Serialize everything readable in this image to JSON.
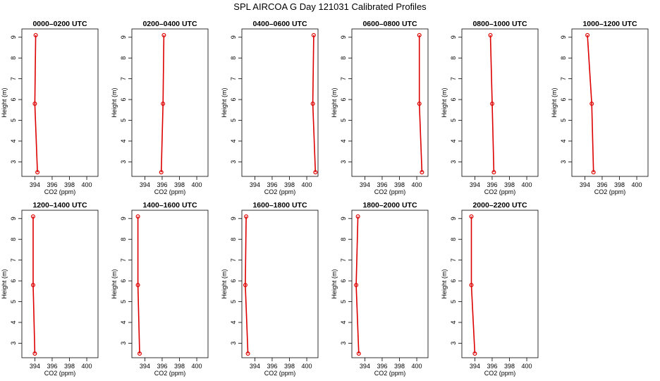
{
  "figure": {
    "title": "SPL AIRCOA G  Day 121031  Calibrated Profiles"
  },
  "chart_data": [
    {
      "type": "line",
      "title": "0000–0200 UTC",
      "xlabel": "CO2 (ppm)",
      "ylabel": "Height (m)",
      "xlim": [
        392.5,
        401.3
      ],
      "ylim": [
        2.3,
        9.4
      ],
      "xticks": [
        394,
        396,
        398,
        400
      ],
      "yticks": [
        3,
        4,
        5,
        6,
        7,
        8,
        9
      ],
      "grid": false,
      "series": [
        {
          "x": [
            394.1,
            394.0,
            394.3
          ],
          "y": [
            9.1,
            5.8,
            2.5
          ],
          "color": "#dd0000"
        }
      ]
    },
    {
      "type": "line",
      "title": "0200–0400 UTC",
      "xlabel": "CO2 (ppm)",
      "ylabel": "Height (m)",
      "xlim": [
        392.5,
        401.3
      ],
      "ylim": [
        2.3,
        9.4
      ],
      "xticks": [
        394,
        396,
        398,
        400
      ],
      "yticks": [
        3,
        4,
        5,
        6,
        7,
        8,
        9
      ],
      "grid": false,
      "series": [
        {
          "x": [
            396.2,
            396.1,
            395.9
          ],
          "y": [
            9.1,
            5.8,
            2.5
          ],
          "color": "#dd0000"
        }
      ]
    },
    {
      "type": "line",
      "title": "0400–0600 UTC",
      "xlabel": "CO2 (ppm)",
      "ylabel": "Height (m)",
      "xlim": [
        392.5,
        401.3
      ],
      "ylim": [
        2.3,
        9.4
      ],
      "xticks": [
        394,
        396,
        398,
        400
      ],
      "yticks": [
        3,
        4,
        5,
        6,
        7,
        8,
        9
      ],
      "grid": false,
      "series": [
        {
          "x": [
            400.8,
            400.7,
            401.0
          ],
          "y": [
            9.1,
            5.8,
            2.5
          ],
          "color": "#dd0000"
        }
      ]
    },
    {
      "type": "line",
      "title": "0600–0800 UTC",
      "xlabel": "CO2 (ppm)",
      "ylabel": "Height (m)",
      "xlim": [
        392.5,
        401.3
      ],
      "ylim": [
        2.3,
        9.4
      ],
      "xticks": [
        394,
        396,
        398,
        400
      ],
      "yticks": [
        3,
        4,
        5,
        6,
        7,
        8,
        9
      ],
      "grid": false,
      "series": [
        {
          "x": [
            400.3,
            400.3,
            400.6
          ],
          "y": [
            9.1,
            5.8,
            2.5
          ],
          "color": "#dd0000"
        }
      ]
    },
    {
      "type": "line",
      "title": "0800–1000 UTC",
      "xlabel": "CO2 (ppm)",
      "ylabel": "Height (m)",
      "xlim": [
        392.5,
        401.3
      ],
      "ylim": [
        2.3,
        9.4
      ],
      "xticks": [
        394,
        396,
        398,
        400
      ],
      "yticks": [
        3,
        4,
        5,
        6,
        7,
        8,
        9
      ],
      "grid": false,
      "series": [
        {
          "x": [
            395.8,
            396.0,
            396.2
          ],
          "y": [
            9.1,
            5.8,
            2.5
          ],
          "color": "#dd0000"
        }
      ]
    },
    {
      "type": "line",
      "title": "1000–1200 UTC",
      "xlabel": "CO2 (ppm)",
      "ylabel": "Height (m)",
      "xlim": [
        392.5,
        401.3
      ],
      "ylim": [
        2.3,
        9.4
      ],
      "xticks": [
        394,
        396,
        398,
        400
      ],
      "yticks": [
        3,
        4,
        5,
        6,
        7,
        8,
        9
      ],
      "grid": false,
      "series": [
        {
          "x": [
            394.3,
            394.8,
            395.0
          ],
          "y": [
            9.1,
            5.8,
            2.5
          ],
          "color": "#dd0000"
        }
      ]
    },
    {
      "type": "line",
      "title": "1200–1400 UTC",
      "xlabel": "CO2 (ppm)",
      "ylabel": "Height (m)",
      "xlim": [
        392.5,
        401.3
      ],
      "ylim": [
        2.3,
        9.4
      ],
      "xticks": [
        394,
        396,
        398,
        400
      ],
      "yticks": [
        3,
        4,
        5,
        6,
        7,
        8,
        9
      ],
      "grid": false,
      "series": [
        {
          "x": [
            393.8,
            393.8,
            394.0
          ],
          "y": [
            9.1,
            5.8,
            2.5
          ],
          "color": "#dd0000"
        }
      ]
    },
    {
      "type": "line",
      "title": "1400–1600 UTC",
      "xlabel": "CO2 (ppm)",
      "ylabel": "Height (m)",
      "xlim": [
        392.5,
        401.3
      ],
      "ylim": [
        2.3,
        9.4
      ],
      "xticks": [
        394,
        396,
        398,
        400
      ],
      "yticks": [
        3,
        4,
        5,
        6,
        7,
        8,
        9
      ],
      "grid": false,
      "series": [
        {
          "x": [
            393.2,
            393.2,
            393.4
          ],
          "y": [
            9.1,
            5.8,
            2.5
          ],
          "color": "#dd0000"
        }
      ]
    },
    {
      "type": "line",
      "title": "1600–1800 UTC",
      "xlabel": "CO2 (ppm)",
      "ylabel": "Height (m)",
      "xlim": [
        392.5,
        401.3
      ],
      "ylim": [
        2.3,
        9.4
      ],
      "xticks": [
        394,
        396,
        398,
        400
      ],
      "yticks": [
        3,
        4,
        5,
        6,
        7,
        8,
        9
      ],
      "grid": false,
      "series": [
        {
          "x": [
            393.0,
            392.9,
            393.2
          ],
          "y": [
            9.1,
            5.8,
            2.5
          ],
          "color": "#dd0000"
        }
      ]
    },
    {
      "type": "line",
      "title": "1800–2000 UTC",
      "xlabel": "CO2 (ppm)",
      "ylabel": "Height (m)",
      "xlim": [
        392.5,
        401.3
      ],
      "ylim": [
        2.3,
        9.4
      ],
      "xticks": [
        394,
        396,
        398,
        400
      ],
      "yticks": [
        3,
        4,
        5,
        6,
        7,
        8,
        9
      ],
      "grid": false,
      "series": [
        {
          "x": [
            393.2,
            393.0,
            393.3
          ],
          "y": [
            9.1,
            5.8,
            2.5
          ],
          "color": "#dd0000"
        }
      ]
    },
    {
      "type": "line",
      "title": "2000–2200 UTC",
      "xlabel": "CO2 (ppm)",
      "ylabel": "Height (m)",
      "xlim": [
        392.5,
        401.3
      ],
      "ylim": [
        2.3,
        9.4
      ],
      "xticks": [
        394,
        396,
        398,
        400
      ],
      "yticks": [
        3,
        4,
        5,
        6,
        7,
        8,
        9
      ],
      "grid": false,
      "series": [
        {
          "x": [
            393.6,
            393.6,
            394.0
          ],
          "y": [
            9.1,
            5.8,
            2.5
          ],
          "color": "#dd0000"
        }
      ]
    }
  ]
}
